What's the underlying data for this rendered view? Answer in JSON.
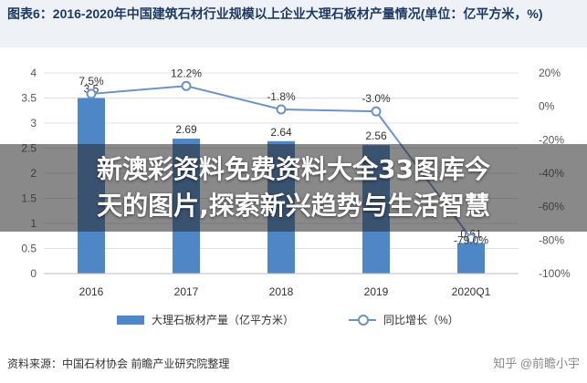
{
  "title": "图表6：2016-2020年中国建筑石材行业规模以上企业大理石板材产量情况(单位：亿平方米，%)",
  "overlay": {
    "headline_line1": "新澳彩资料免费资料大全33图库今",
    "headline_line2": "天的图片,探索新兴趋势与生活智慧"
  },
  "source": "资料来源：中国石材协会 前瞻产业研究院整理",
  "watermark": "知乎 @前瞻小宇",
  "colors": {
    "bar": "#4f86c6",
    "line": "#6c93c4",
    "grid": "#e0e0e0",
    "title": "#1f3864"
  },
  "chart_data": {
    "type": "bar",
    "categories": [
      "2016",
      "2017",
      "2018",
      "2019",
      "2020Q1"
    ],
    "series": [
      {
        "name": "大理石板材产量（亿平方米）",
        "type": "bar",
        "axis": "left",
        "values": [
          3.5,
          2.69,
          2.64,
          2.56,
          0.61
        ],
        "labels": [
          "3.5",
          "2.69",
          "2.64",
          "2.56",
          "0.61"
        ]
      },
      {
        "name": "同比增长（%）",
        "type": "line",
        "axis": "right",
        "values": [
          7.5,
          12.2,
          -1.8,
          -3.0,
          -79.0
        ],
        "labels": [
          "7.5%",
          "12.2%",
          "-1.8%",
          "-3.0%",
          "-79.0%"
        ]
      }
    ],
    "y_left": {
      "ylim": [
        0,
        4
      ],
      "ticks": [
        "0",
        "0.5",
        "1",
        "1.5",
        "2",
        "2.5",
        "3",
        "3.5",
        "4"
      ],
      "tick_values": [
        0,
        0.5,
        1,
        1.5,
        2,
        2.5,
        3,
        3.5,
        4
      ]
    },
    "y_right": {
      "ylim": [
        -100,
        20
      ],
      "ticks": [
        "-100%",
        "-80%",
        "-60%",
        "-40%",
        "-20%",
        "0%",
        "20%"
      ],
      "tick_values": [
        -100,
        -80,
        -60,
        -40,
        -20,
        0,
        20
      ]
    },
    "grid": true,
    "legend_position": "bottom"
  }
}
